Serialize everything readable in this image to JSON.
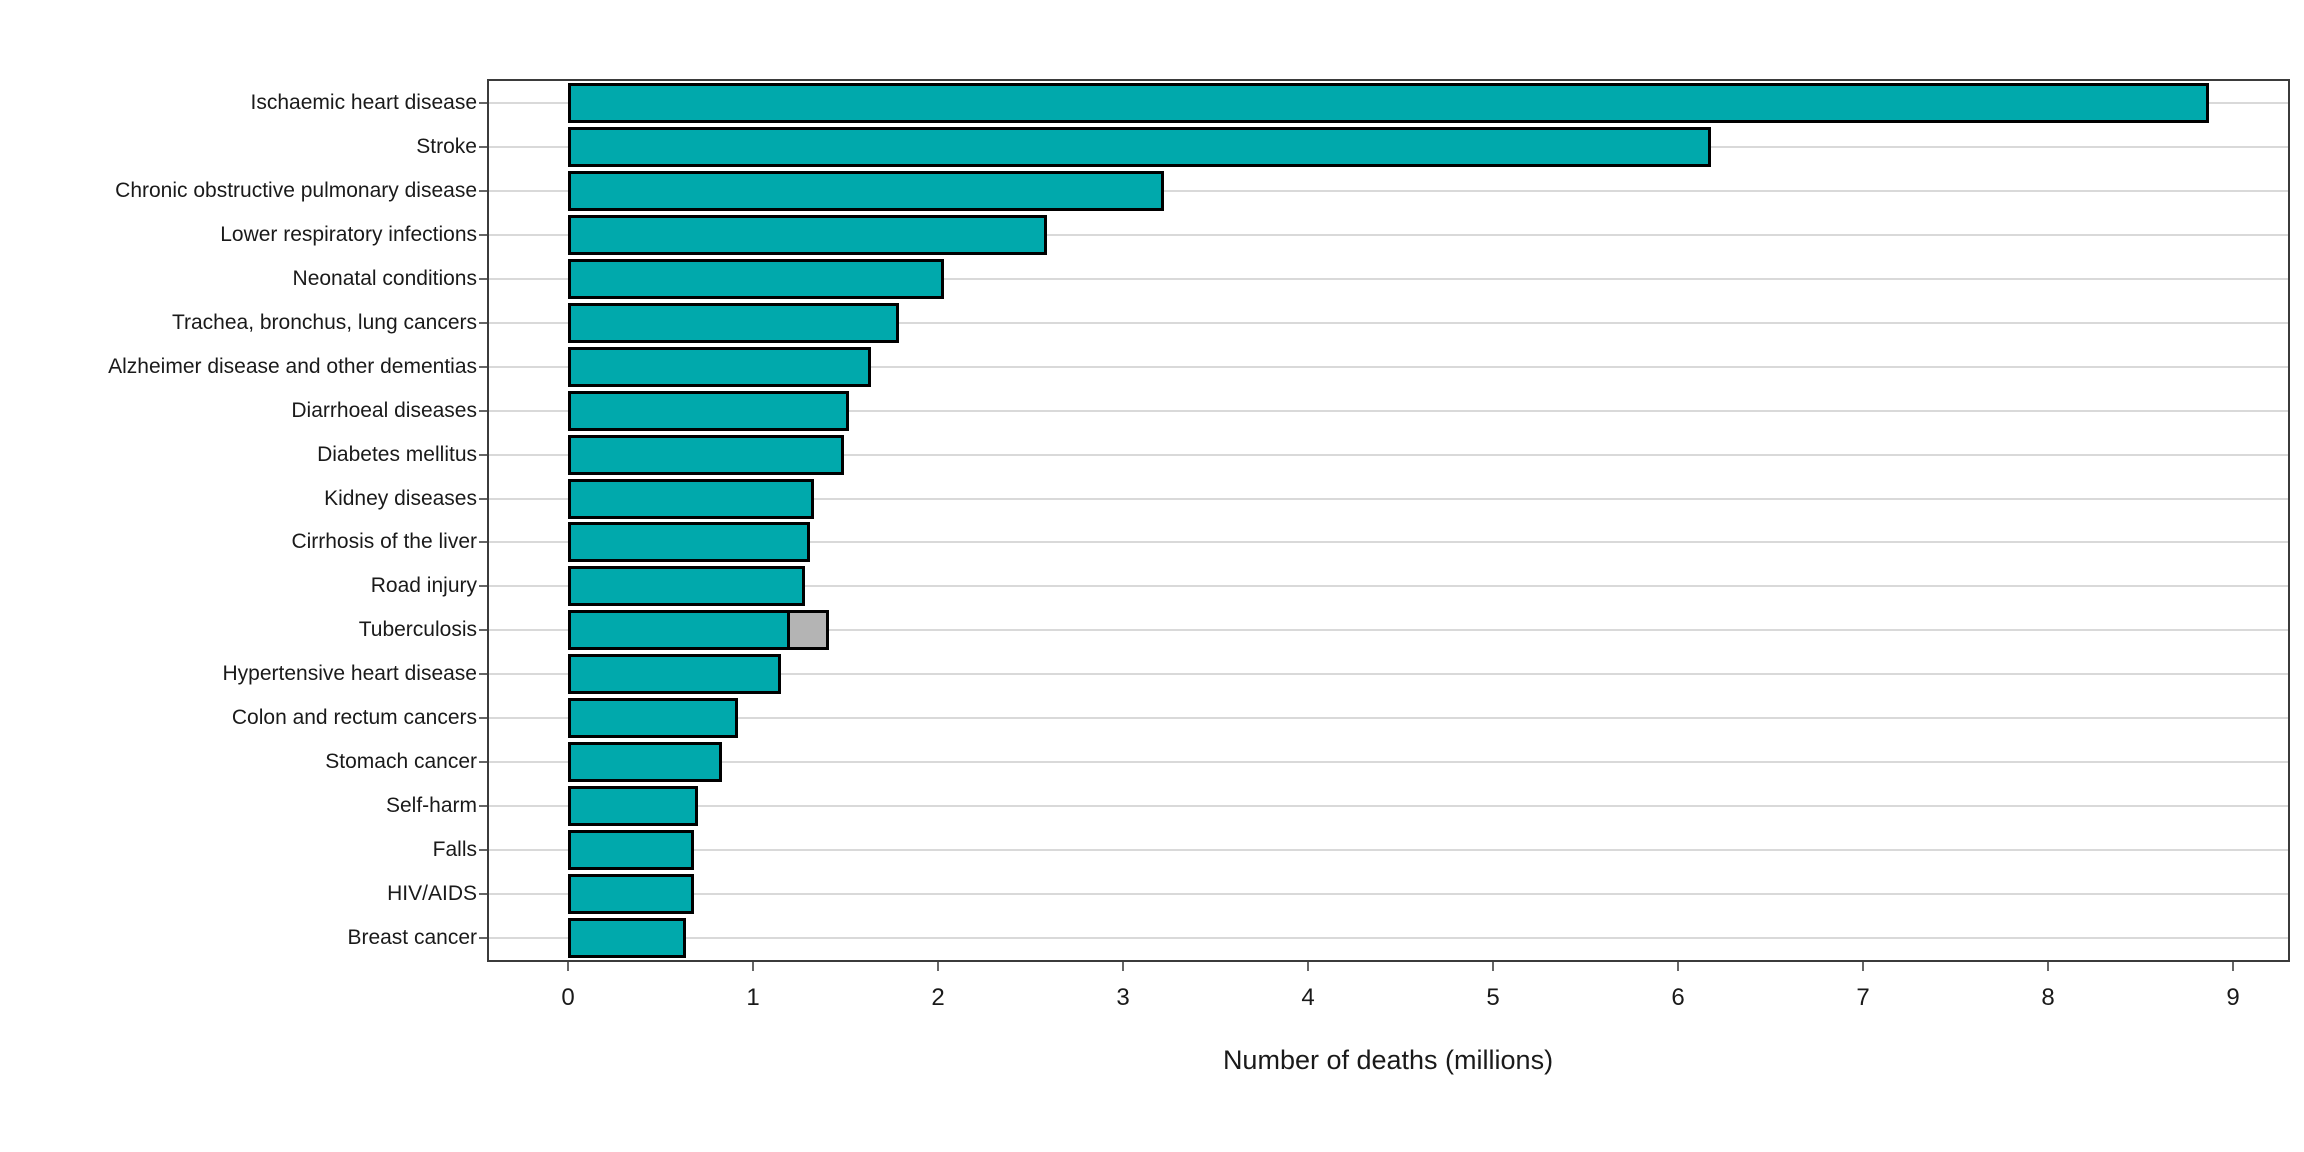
{
  "chart_data": {
    "type": "bar",
    "orientation": "horizontal",
    "title": "",
    "xlabel": "Number of deaths (millions)",
    "ylabel": "",
    "xlim": [
      0,
      9.3
    ],
    "xticks": [
      0,
      1,
      2,
      3,
      4,
      5,
      6,
      7,
      8,
      9
    ],
    "grid": "horizontal row gridlines only",
    "legend_position": "none",
    "categories": [
      "Ischaemic heart disease",
      "Stroke",
      "Chronic obstructive pulmonary disease",
      "Lower respiratory infections",
      "Neonatal conditions",
      "Trachea, bronchus, lung cancers",
      "Alzheimer disease and other dementias",
      "Diarrhoeal diseases",
      "Diabetes mellitus",
      "Kidney diseases",
      "Cirrhosis of the liver",
      "Road injury",
      "Tuberculosis",
      "Hypertensive heart disease",
      "Colon and rectum cancers",
      "Stomach cancer",
      "Self-harm",
      "Falls",
      "HIV/AIDS",
      "Breast cancer"
    ],
    "series": [
      {
        "name": "deaths-teal-segment",
        "color": "#00A9AC",
        "values": [
          8.87,
          6.18,
          3.22,
          2.59,
          2.03,
          1.79,
          1.64,
          1.52,
          1.49,
          1.33,
          1.31,
          1.28,
          1.2,
          1.15,
          0.92,
          0.83,
          0.7,
          0.68,
          0.68,
          0.64
        ]
      },
      {
        "name": "deaths-grey-segment",
        "color": "#B4B4B4",
        "values": [
          0,
          0,
          0,
          0,
          0,
          0,
          0,
          0,
          0,
          0,
          0,
          0,
          0.21,
          0,
          0,
          0,
          0,
          0,
          0,
          0
        ]
      }
    ]
  },
  "colors": {
    "bar_fill": "#00A9AC",
    "bar_grey_fill": "#B4B4B4",
    "bar_border": "#000000",
    "panel_border": "#3b3b3b",
    "gridline": "#d9d9d9",
    "tick": "#666666",
    "text": "#1a1a1a",
    "background": "#ffffff"
  }
}
